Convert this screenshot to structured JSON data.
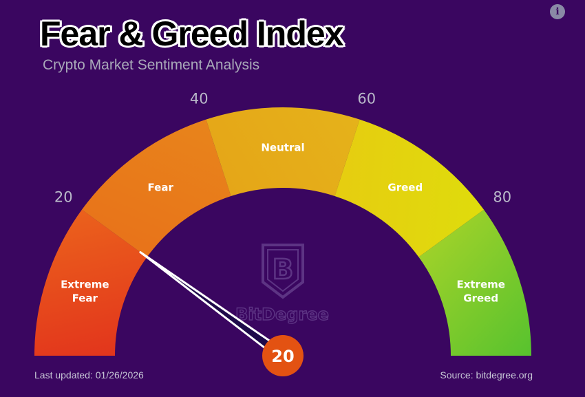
{
  "title": "Fear & Greed Index",
  "subtitle": "Crypto Market Sentiment Analysis",
  "info_icon": "info-icon",
  "footer": {
    "last_updated": "Last updated: 01/26/2026",
    "source": "Source: bitdegree.org"
  },
  "logo": {
    "glyph": "B",
    "wordmark": "BitDegree"
  },
  "colors": {
    "background": "#3a0660",
    "needle": "#1e0a4a",
    "value_circle": "#e35212"
  },
  "chart_data": {
    "type": "gauge",
    "range": [
      0,
      100
    ],
    "value": 20,
    "value_label": "20",
    "zones": [
      {
        "label_lines": [
          "Extreme",
          "Fear"
        ],
        "from": 0,
        "to": 20,
        "colors": [
          "#e2351c",
          "#eb611c"
        ]
      },
      {
        "label_lines": [
          "Fear"
        ],
        "from": 20,
        "to": 40,
        "colors": [
          "#e8731a",
          "#e8841b"
        ]
      },
      {
        "label_lines": [
          "Neutral"
        ],
        "from": 40,
        "to": 60,
        "colors": [
          "#e5a618",
          "#e5b21a"
        ]
      },
      {
        "label_lines": [
          "Greed"
        ],
        "from": 60,
        "to": 80,
        "colors": [
          "#e6cd10",
          "#dfdc0c"
        ]
      },
      {
        "label_lines": [
          "Extreme",
          "Greed"
        ],
        "from": 80,
        "to": 100,
        "colors": [
          "#9ed12a",
          "#57c22e"
        ]
      }
    ],
    "ticks": [
      {
        "value": 20,
        "label": "20"
      },
      {
        "value": 40,
        "label": "40"
      },
      {
        "value": 60,
        "label": "60"
      },
      {
        "value": 80,
        "label": "80"
      }
    ]
  }
}
